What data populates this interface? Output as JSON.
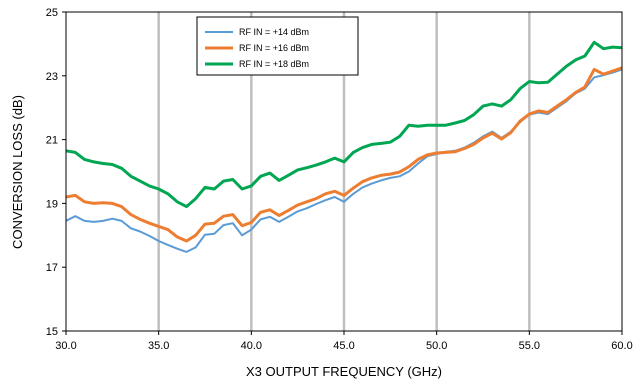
{
  "chart_data": {
    "type": "line",
    "title": "",
    "xlabel": "X3 OUTPUT FREQUENCY (GHz)",
    "ylabel": "CONVERSION LOSS (dB)",
    "xlim": [
      30,
      60
    ],
    "ylim": [
      15,
      25
    ],
    "xticks": [
      30,
      35,
      40,
      45,
      50,
      55,
      60
    ],
    "xtick_labels": [
      "30.0",
      "35.0",
      "40.0",
      "45.0",
      "50.0",
      "55.0",
      "60.0"
    ],
    "yticks": [
      15,
      17,
      19,
      21,
      23,
      25
    ],
    "ytick_labels": [
      "15",
      "17",
      "19",
      "21",
      "23",
      "25"
    ],
    "grid": "vertical",
    "legend_position": "top-center",
    "series": [
      {
        "name": "RF IN = +14 dBm",
        "color": "#5b9bd5",
        "x": [
          30.0,
          30.5,
          31.0,
          31.5,
          32.0,
          32.5,
          33.0,
          33.5,
          34.0,
          34.5,
          35.0,
          35.5,
          36.0,
          36.5,
          37.0,
          37.5,
          38.0,
          38.5,
          39.0,
          39.5,
          40.0,
          40.5,
          41.0,
          41.5,
          42.0,
          42.5,
          43.0,
          43.5,
          44.0,
          44.5,
          45.0,
          45.5,
          46.0,
          46.5,
          47.0,
          47.5,
          48.0,
          48.5,
          49.0,
          49.5,
          50.0,
          50.5,
          51.0,
          51.5,
          52.0,
          52.5,
          53.0,
          53.5,
          54.0,
          54.5,
          55.0,
          55.5,
          56.0,
          56.5,
          57.0,
          57.5,
          58.0,
          58.5,
          59.0,
          59.5,
          60.0
        ],
        "values": [
          18.45,
          18.6,
          18.45,
          18.42,
          18.45,
          18.52,
          18.45,
          18.22,
          18.12,
          17.98,
          17.82,
          17.7,
          17.58,
          17.48,
          17.62,
          18.02,
          18.05,
          18.32,
          18.38,
          18.0,
          18.18,
          18.5,
          18.58,
          18.42,
          18.58,
          18.75,
          18.85,
          18.98,
          19.1,
          19.2,
          19.05,
          19.3,
          19.5,
          19.62,
          19.72,
          19.8,
          19.85,
          20.0,
          20.25,
          20.48,
          20.55,
          20.62,
          20.65,
          20.75,
          20.9,
          21.1,
          21.25,
          21.05,
          21.25,
          21.55,
          21.78,
          21.85,
          21.8,
          22.0,
          22.2,
          22.45,
          22.6,
          22.95,
          23.02,
          23.1,
          23.2
        ]
      },
      {
        "name": "RF IN = +16 dBm",
        "color": "#ed7d31",
        "x": [
          30.0,
          30.5,
          31.0,
          31.5,
          32.0,
          32.5,
          33.0,
          33.5,
          34.0,
          34.5,
          35.0,
          35.5,
          36.0,
          36.5,
          37.0,
          37.5,
          38.0,
          38.5,
          39.0,
          39.5,
          40.0,
          40.5,
          41.0,
          41.5,
          42.0,
          42.5,
          43.0,
          43.5,
          44.0,
          44.5,
          45.0,
          45.5,
          46.0,
          46.5,
          47.0,
          47.5,
          48.0,
          48.5,
          49.0,
          49.5,
          50.0,
          50.5,
          51.0,
          51.5,
          52.0,
          52.5,
          53.0,
          53.5,
          54.0,
          54.5,
          55.0,
          55.5,
          56.0,
          56.5,
          57.0,
          57.5,
          58.0,
          58.5,
          59.0,
          59.5,
          60.0
        ],
        "values": [
          19.2,
          19.25,
          19.05,
          19.0,
          19.02,
          19.0,
          18.9,
          18.65,
          18.5,
          18.38,
          18.28,
          18.18,
          17.95,
          17.82,
          18.0,
          18.35,
          18.38,
          18.6,
          18.65,
          18.3,
          18.4,
          18.72,
          18.8,
          18.62,
          18.78,
          18.95,
          19.05,
          19.15,
          19.3,
          19.38,
          19.25,
          19.48,
          19.68,
          19.8,
          19.88,
          19.92,
          19.98,
          20.15,
          20.38,
          20.52,
          20.58,
          20.6,
          20.62,
          20.72,
          20.85,
          21.05,
          21.2,
          21.02,
          21.22,
          21.58,
          21.8,
          21.9,
          21.85,
          22.05,
          22.25,
          22.48,
          22.65,
          23.2,
          23.05,
          23.15,
          23.25
        ]
      },
      {
        "name": "RF IN = +18 dBm",
        "color": "#00a651",
        "x": [
          30.0,
          30.5,
          31.0,
          31.5,
          32.0,
          32.5,
          33.0,
          33.5,
          34.0,
          34.5,
          35.0,
          35.5,
          36.0,
          36.5,
          37.0,
          37.5,
          38.0,
          38.5,
          39.0,
          39.5,
          40.0,
          40.5,
          41.0,
          41.5,
          42.0,
          42.5,
          43.0,
          43.5,
          44.0,
          44.5,
          45.0,
          45.5,
          46.0,
          46.5,
          47.0,
          47.5,
          48.0,
          48.5,
          49.0,
          49.5,
          50.0,
          50.5,
          51.0,
          51.5,
          52.0,
          52.5,
          53.0,
          53.5,
          54.0,
          54.5,
          55.0,
          55.5,
          56.0,
          56.5,
          57.0,
          57.5,
          58.0,
          58.5,
          59.0,
          59.5,
          60.0
        ],
        "values": [
          20.65,
          20.6,
          20.38,
          20.3,
          20.25,
          20.22,
          20.1,
          19.85,
          19.7,
          19.55,
          19.45,
          19.3,
          19.05,
          18.9,
          19.15,
          19.5,
          19.45,
          19.7,
          19.75,
          19.45,
          19.55,
          19.85,
          19.95,
          19.72,
          19.88,
          20.05,
          20.12,
          20.2,
          20.3,
          20.42,
          20.3,
          20.6,
          20.75,
          20.85,
          20.88,
          20.92,
          21.1,
          21.45,
          21.42,
          21.45,
          21.45,
          21.45,
          21.52,
          21.6,
          21.78,
          22.05,
          22.12,
          22.05,
          22.25,
          22.6,
          22.82,
          22.78,
          22.8,
          23.05,
          23.3,
          23.5,
          23.62,
          24.05,
          23.85,
          23.9,
          23.88
        ]
      }
    ]
  }
}
